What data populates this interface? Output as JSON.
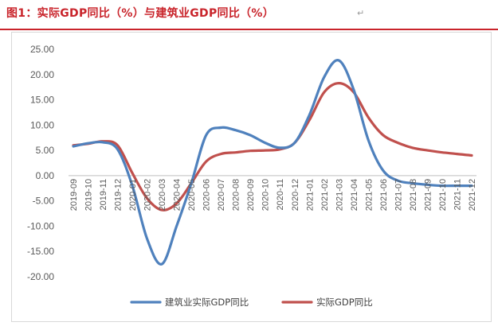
{
  "title": "图1：实际GDP同比（%）与建筑业GDP同比（%）",
  "return_mark": "↵",
  "chart_data": {
    "type": "line",
    "title": "",
    "xlabel": "",
    "ylabel": "",
    "ylim": [
      -20,
      25
    ],
    "yticks": [
      25,
      20,
      15,
      10,
      5,
      0,
      -5,
      -10,
      -15,
      -20
    ],
    "ytick_labels": [
      "25.00",
      "20.00",
      "15.00",
      "10.00",
      "5.00",
      "0.00",
      "-5.00",
      "-10.00",
      "-15.00",
      "-20.00"
    ],
    "grid": false,
    "legend_position": "bottom",
    "categories": [
      "2019-09",
      "2019-10",
      "2019-11",
      "2019-12",
      "2020-01",
      "2020-02",
      "2020-03",
      "2020-04",
      "2020-05",
      "2020-06",
      "2020-07",
      "2020-08",
      "2020-09",
      "2020-10",
      "2020-11",
      "2020-12",
      "2021-01",
      "2021-02",
      "2021-03",
      "2021-04",
      "2021-05",
      "2021-06",
      "2021-07",
      "2021-08",
      "2021-09",
      "2021-10",
      "2021-11",
      "2021-12"
    ],
    "series": [
      {
        "name": "建筑业实际GDP同比",
        "color": "#4f81bd",
        "values": [
          5.8,
          6.4,
          6.6,
          5.2,
          -2.0,
          -12.5,
          -17.5,
          -10.0,
          -1.5,
          8.0,
          9.5,
          9.0,
          8.0,
          6.5,
          5.5,
          6.5,
          12.0,
          19.5,
          22.8,
          17.0,
          7.0,
          1.0,
          -1.0,
          -1.5,
          -1.8,
          -2.0,
          -2.0,
          -2.0
        ]
      },
      {
        "name": "实际GDP同比",
        "color": "#c0504d",
        "values": [
          6.0,
          6.3,
          6.8,
          6.0,
          0.5,
          -4.5,
          -6.8,
          -5.5,
          -1.5,
          2.8,
          4.3,
          4.6,
          4.9,
          5.0,
          5.2,
          6.5,
          11.0,
          16.5,
          18.3,
          16.5,
          11.5,
          8.0,
          6.5,
          5.5,
          5.0,
          4.6,
          4.3,
          4.0
        ]
      }
    ]
  }
}
